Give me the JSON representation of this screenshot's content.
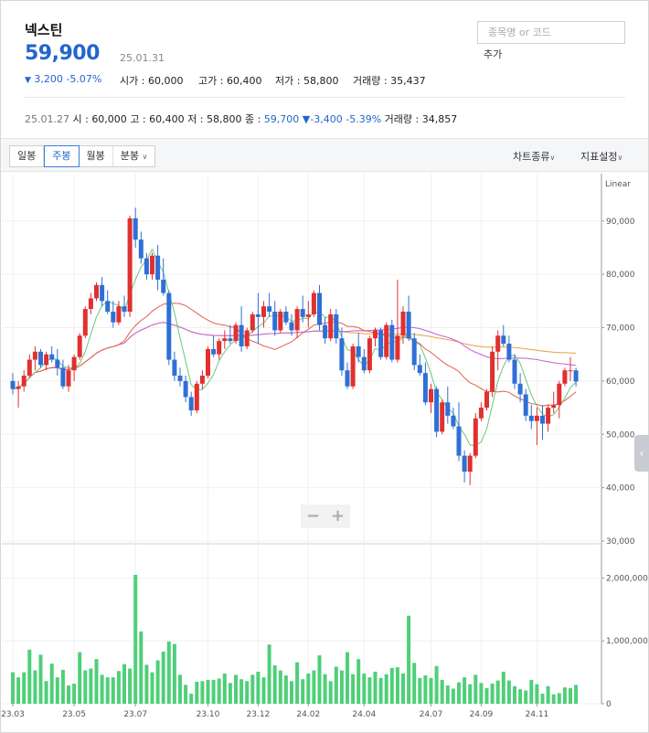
{
  "stock": {
    "name": "넥스틴",
    "price": "59,900",
    "date": "25.01.31",
    "change": "3,200",
    "change_pct": "-5.07%",
    "open_label": "시가",
    "open": "60,000",
    "high_label": "고가",
    "high": "60,400",
    "low_label": "저가",
    "low": "58,800",
    "volume_label": "거래량",
    "volume": "35,437"
  },
  "search": {
    "placeholder": "종목명 or 코드",
    "add_label": "추가"
  },
  "daily": {
    "date": "25.01.27",
    "open_label": "시",
    "open": "60,000",
    "high_label": "고",
    "high": "60,400",
    "low_label": "저",
    "low": "58,800",
    "close_label": "종",
    "close": "59,700",
    "change": "-3,400",
    "change_pct": "-5.39%",
    "volume_label": "거래량",
    "volume": "34,857"
  },
  "toolbar": {
    "tabs": [
      "일봉",
      "주봉",
      "월봉",
      "분봉"
    ],
    "active_tab": "주봉",
    "chart_type_label": "차트종류",
    "indicator_label": "지표설정"
  },
  "colors": {
    "up": "#e03030",
    "down": "#2f6fd6",
    "volume": "#4fcf78",
    "ma5": "#6cc77a",
    "ma20": "#e0604a",
    "ma60": "#c060d8",
    "ma120": "#e8a040"
  },
  "chart_data": {
    "type": "candlestick",
    "scale_label": "Linear",
    "y_ticks": [
      "90,000",
      "80,000",
      "70,000",
      "60,000",
      "50,000",
      "40,000",
      "30,000"
    ],
    "y_tick_values": [
      90000,
      80000,
      70000,
      60000,
      50000,
      40000,
      30000
    ],
    "price_range": [
      30000,
      97500
    ],
    "volume_ticks": [
      "2,000,000",
      "1,000,000",
      "0"
    ],
    "volume_tick_values": [
      2000000,
      1000000,
      0
    ],
    "volume_range": [
      0,
      2500000
    ],
    "x_ticks": [
      "23.03",
      "23.05",
      "23.07",
      "23.10",
      "23.12",
      "24.02",
      "24.04",
      "24.07",
      "24.09",
      "24.11"
    ],
    "x_tick_index": [
      0,
      11,
      22,
      35,
      44,
      53,
      63,
      75,
      84,
      94
    ],
    "candles": [
      [
        60000,
        61500,
        57500,
        58500
      ],
      [
        58500,
        60000,
        55000,
        59000
      ],
      [
        59000,
        62000,
        58000,
        61000
      ],
      [
        61000,
        65000,
        60500,
        64000
      ],
      [
        64000,
        66500,
        62000,
        65500
      ],
      [
        65500,
        66000,
        62500,
        63000
      ],
      [
        63000,
        65500,
        62000,
        65000
      ],
      [
        65000,
        66500,
        63500,
        64000
      ],
      [
        64000,
        66000,
        61000,
        62500
      ],
      [
        62500,
        64000,
        58500,
        59000
      ],
      [
        59000,
        63000,
        58000,
        62000
      ],
      [
        62000,
        65000,
        60000,
        64500
      ],
      [
        64500,
        69000,
        64000,
        68500
      ],
      [
        68500,
        74000,
        68000,
        73500
      ],
      [
        73500,
        76500,
        72500,
        75500
      ],
      [
        75500,
        78500,
        75000,
        78000
      ],
      [
        78000,
        79500,
        74000,
        75000
      ],
      [
        75000,
        77000,
        72500,
        73000
      ],
      [
        73000,
        75000,
        70000,
        71000
      ],
      [
        71000,
        75000,
        70500,
        74000
      ],
      [
        74000,
        76000,
        72000,
        73000
      ],
      [
        73000,
        91000,
        72000,
        90500
      ],
      [
        90500,
        92500,
        85000,
        86500
      ],
      [
        86500,
        88000,
        82000,
        83000
      ],
      [
        83000,
        84000,
        79000,
        80000
      ],
      [
        80000,
        84000,
        79000,
        83500
      ],
      [
        83500,
        85500,
        77000,
        79000
      ],
      [
        79000,
        83000,
        76000,
        76500
      ],
      [
        76500,
        77000,
        63000,
        64000
      ],
      [
        64000,
        65500,
        60000,
        61000
      ],
      [
        61000,
        62500,
        59000,
        60000
      ],
      [
        60000,
        61000,
        56000,
        57000
      ],
      [
        57000,
        58000,
        53500,
        54500
      ],
      [
        54500,
        60000,
        54000,
        59500
      ],
      [
        59500,
        62000,
        58500,
        61000
      ],
      [
        61000,
        66500,
        60500,
        66000
      ],
      [
        66000,
        68500,
        64500,
        65000
      ],
      [
        65000,
        68000,
        64000,
        67500
      ],
      [
        67500,
        69500,
        66000,
        68000
      ],
      [
        68000,
        70500,
        67000,
        67500
      ],
      [
        67500,
        71000,
        67000,
        70500
      ],
      [
        70500,
        74000,
        65500,
        66500
      ],
      [
        66500,
        70000,
        66000,
        69500
      ],
      [
        69500,
        73000,
        69000,
        72500
      ],
      [
        72500,
        76500,
        67000,
        72000
      ],
      [
        72000,
        75000,
        70000,
        74000
      ],
      [
        74000,
        76500,
        72000,
        73000
      ],
      [
        73000,
        75000,
        68500,
        69500
      ],
      [
        69500,
        73500,
        69000,
        73000
      ],
      [
        73000,
        74000,
        70500,
        71000
      ],
      [
        71000,
        72500,
        68500,
        69500
      ],
      [
        69500,
        74000,
        68000,
        73500
      ],
      [
        73500,
        76000,
        71000,
        72000
      ],
      [
        72000,
        75000,
        70000,
        72500
      ],
      [
        72500,
        77000,
        72000,
        76500
      ],
      [
        76500,
        78000,
        69500,
        70500
      ],
      [
        70500,
        72000,
        67000,
        68000
      ],
      [
        68000,
        73500,
        67500,
        72500
      ],
      [
        72500,
        73500,
        67000,
        68000
      ],
      [
        68000,
        70000,
        61000,
        62000
      ],
      [
        62000,
        63500,
        58500,
        59000
      ],
      [
        59000,
        67000,
        58500,
        66500
      ],
      [
        66500,
        69000,
        63500,
        64500
      ],
      [
        64500,
        66000,
        61500,
        62000
      ],
      [
        62000,
        68500,
        61500,
        68000
      ],
      [
        68000,
        70000,
        66500,
        69500
      ],
      [
        69500,
        70000,
        64000,
        64500
      ],
      [
        64500,
        71000,
        64000,
        70500
      ],
      [
        70500,
        71500,
        63500,
        64000
      ],
      [
        64000,
        79000,
        63500,
        68500
      ],
      [
        68500,
        74000,
        67000,
        73000
      ],
      [
        73000,
        76000,
        67500,
        68000
      ],
      [
        68000,
        69000,
        62000,
        63000
      ],
      [
        63000,
        65000,
        61000,
        61500
      ],
      [
        61500,
        63500,
        55500,
        56000
      ],
      [
        56000,
        59500,
        54000,
        58500
      ],
      [
        58500,
        59000,
        49500,
        50500
      ],
      [
        50500,
        56500,
        50000,
        56000
      ],
      [
        56000,
        59000,
        52000,
        53500
      ],
      [
        53500,
        55000,
        51000,
        51500
      ],
      [
        51500,
        56000,
        45000,
        46000
      ],
      [
        46000,
        47000,
        41000,
        43000
      ],
      [
        43000,
        46500,
        40500,
        46000
      ],
      [
        46000,
        54000,
        45500,
        53000
      ],
      [
        53000,
        56000,
        52500,
        55000
      ],
      [
        55000,
        58500,
        54500,
        58000
      ],
      [
        58000,
        66500,
        57000,
        65500
      ],
      [
        65500,
        69500,
        62000,
        68500
      ],
      [
        68500,
        70500,
        66500,
        67000
      ],
      [
        67000,
        68500,
        63500,
        64000
      ],
      [
        64000,
        65000,
        58500,
        59500
      ],
      [
        59500,
        61500,
        56000,
        57500
      ],
      [
        57500,
        58500,
        52500,
        53500
      ],
      [
        53500,
        55500,
        51000,
        52500
      ],
      [
        52500,
        55000,
        48000,
        53500
      ],
      [
        53500,
        55500,
        49000,
        52000
      ],
      [
        52000,
        55500,
        50500,
        55000
      ],
      [
        55000,
        58000,
        54000,
        55500
      ],
      [
        55500,
        60000,
        53000,
        59500
      ],
      [
        59500,
        62500,
        59000,
        62000
      ],
      [
        62000,
        64500,
        60000,
        62000
      ],
      [
        62000,
        62500,
        59000,
        59900
      ]
    ],
    "volume": [
      500000,
      420000,
      500000,
      860000,
      530000,
      780000,
      360000,
      640000,
      420000,
      540000,
      290000,
      320000,
      820000,
      530000,
      560000,
      710000,
      460000,
      420000,
      420000,
      520000,
      630000,
      560000,
      2050000,
      1150000,
      620000,
      500000,
      690000,
      830000,
      990000,
      950000,
      460000,
      300000,
      160000,
      350000,
      360000,
      380000,
      380000,
      400000,
      480000,
      330000,
      460000,
      390000,
      360000,
      460000,
      510000,
      420000,
      940000,
      610000,
      530000,
      450000,
      360000,
      660000,
      390000,
      480000,
      530000,
      770000,
      470000,
      360000,
      590000,
      530000,
      820000,
      470000,
      710000,
      480000,
      420000,
      510000,
      410000,
      470000,
      570000,
      580000,
      480000,
      1400000,
      650000,
      410000,
      450000,
      410000,
      600000,
      380000,
      290000,
      240000,
      340000,
      420000,
      310000,
      460000,
      330000,
      250000,
      320000,
      370000,
      510000,
      370000,
      280000,
      230000,
      210000,
      380000,
      310000,
      160000,
      280000,
      150000,
      170000,
      260000,
      250000,
      300000
    ]
  }
}
